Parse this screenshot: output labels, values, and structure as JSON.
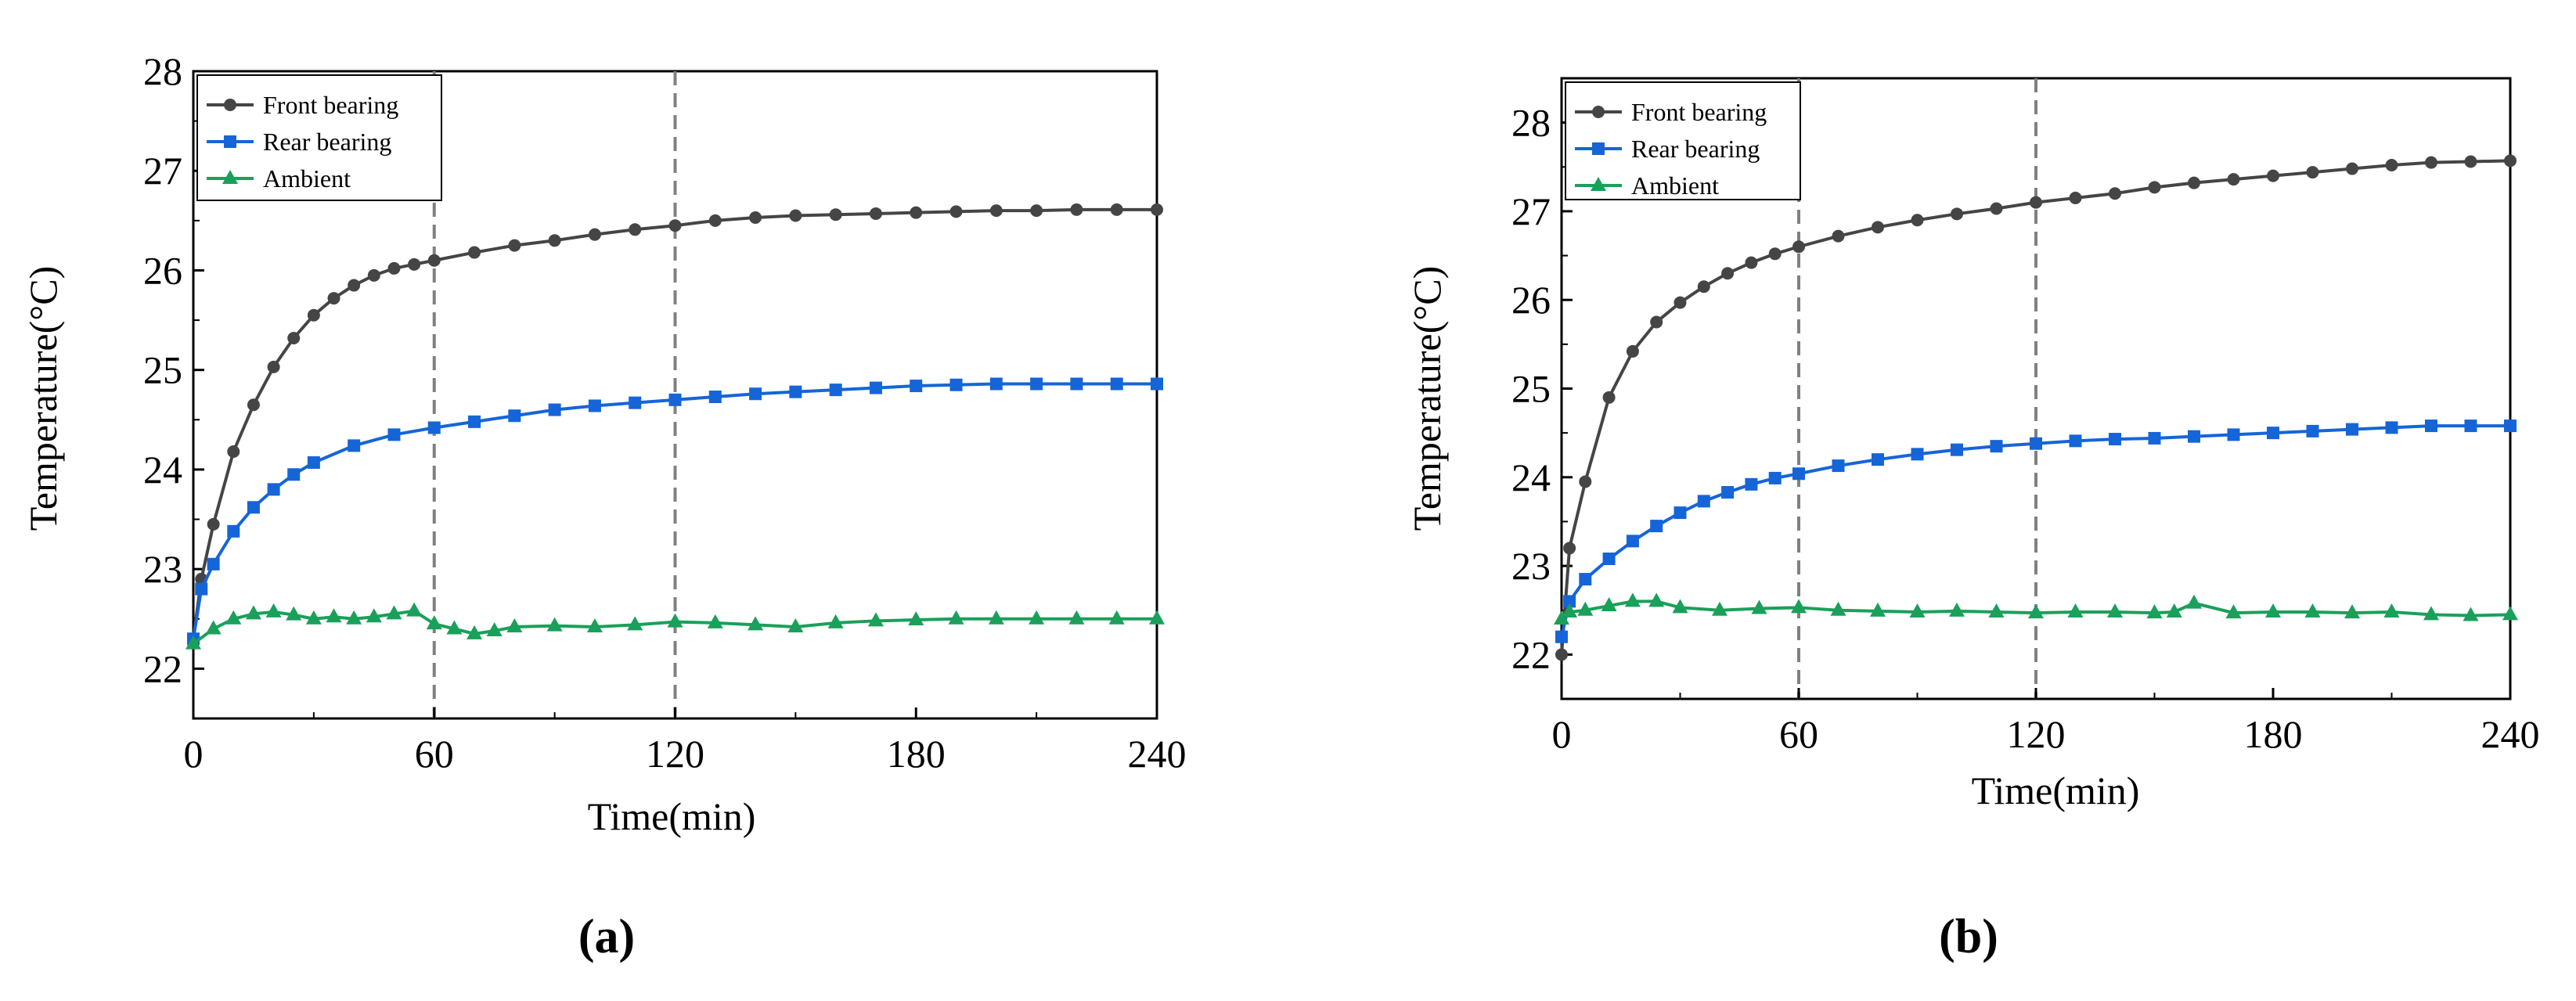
{
  "chart_data": [
    {
      "type": "line",
      "panel_label": "(a)",
      "xlabel": "Time(min)",
      "ylabel": "Temperature(°C)",
      "xlim": [
        0,
        240
      ],
      "ylim": [
        21.5,
        28
      ],
      "xticks": [
        0,
        60,
        120,
        180,
        240
      ],
      "yticks": [
        22,
        23,
        24,
        25,
        26,
        27,
        28
      ],
      "vlines": [
        60,
        120
      ],
      "legend": "top-left",
      "series": [
        {
          "name": "Front bearing",
          "color": "#454545",
          "marker": "circle",
          "x": [
            0,
            2,
            5,
            10,
            15,
            20,
            25,
            30,
            35,
            40,
            45,
            50,
            55,
            60,
            70,
            80,
            90,
            100,
            110,
            120,
            130,
            140,
            150,
            160,
            170,
            180,
            190,
            200,
            210,
            220,
            230,
            240
          ],
          "y": [
            22.3,
            22.9,
            23.45,
            24.18,
            24.65,
            25.03,
            25.32,
            25.55,
            25.72,
            25.85,
            25.95,
            26.02,
            26.06,
            26.1,
            26.18,
            26.25,
            26.3,
            26.36,
            26.41,
            26.45,
            26.5,
            26.53,
            26.55,
            26.56,
            26.57,
            26.58,
            26.59,
            26.6,
            26.6,
            26.61,
            26.61,
            26.61
          ]
        },
        {
          "name": "Rear bearing",
          "color": "#1565d8",
          "marker": "square",
          "x": [
            0,
            2,
            5,
            10,
            15,
            20,
            25,
            30,
            40,
            50,
            60,
            70,
            80,
            90,
            100,
            110,
            120,
            130,
            140,
            150,
            160,
            170,
            180,
            190,
            200,
            210,
            220,
            230,
            240
          ],
          "y": [
            22.3,
            22.8,
            23.05,
            23.38,
            23.62,
            23.8,
            23.95,
            24.07,
            24.24,
            24.35,
            24.42,
            24.48,
            24.54,
            24.6,
            24.64,
            24.67,
            24.7,
            24.73,
            24.76,
            24.78,
            24.8,
            24.82,
            24.84,
            24.85,
            24.86,
            24.86,
            24.86,
            24.86,
            24.86
          ]
        },
        {
          "name": "Ambient",
          "color": "#1aa05a",
          "marker": "triangle",
          "x": [
            0,
            5,
            10,
            15,
            20,
            25,
            30,
            35,
            40,
            45,
            50,
            55,
            60,
            65,
            70,
            75,
            80,
            90,
            100,
            110,
            120,
            130,
            140,
            150,
            160,
            170,
            180,
            190,
            200,
            210,
            220,
            230,
            240
          ],
          "y": [
            22.25,
            22.4,
            22.5,
            22.55,
            22.57,
            22.54,
            22.5,
            22.52,
            22.5,
            22.52,
            22.55,
            22.58,
            22.45,
            22.4,
            22.35,
            22.38,
            22.42,
            22.43,
            22.42,
            22.44,
            22.47,
            22.46,
            22.44,
            22.42,
            22.46,
            22.48,
            22.49,
            22.5,
            22.5,
            22.5,
            22.5,
            22.5,
            22.5
          ]
        }
      ]
    },
    {
      "type": "line",
      "panel_label": "(b)",
      "xlabel": "Time(min)",
      "ylabel": "Temperature(°C)",
      "xlim": [
        0,
        240
      ],
      "ylim": [
        21.5,
        28.5
      ],
      "xticks": [
        0,
        60,
        120,
        180,
        240
      ],
      "yticks": [
        22,
        23,
        24,
        25,
        26,
        27,
        28
      ],
      "vlines": [
        60,
        120
      ],
      "legend": "top-left",
      "series": [
        {
          "name": "Front bearing",
          "color": "#454545",
          "marker": "circle",
          "x": [
            0,
            2,
            6,
            12,
            18,
            24,
            30,
            36,
            42,
            48,
            54,
            60,
            70,
            80,
            90,
            100,
            110,
            120,
            130,
            140,
            150,
            160,
            170,
            180,
            190,
            200,
            210,
            220,
            230,
            240
          ],
          "y": [
            22.0,
            23.2,
            23.95,
            24.9,
            25.42,
            25.75,
            25.97,
            26.15,
            26.3,
            26.42,
            26.52,
            26.6,
            26.72,
            26.82,
            26.9,
            26.97,
            27.03,
            27.1,
            27.15,
            27.2,
            27.27,
            27.32,
            27.36,
            27.4,
            27.44,
            27.48,
            27.52,
            27.55,
            27.56,
            27.57
          ]
        },
        {
          "name": "Rear bearing",
          "color": "#1565d8",
          "marker": "square",
          "x": [
            0,
            2,
            6,
            12,
            18,
            24,
            30,
            36,
            42,
            48,
            54,
            60,
            70,
            80,
            90,
            100,
            110,
            120,
            130,
            140,
            150,
            160,
            170,
            180,
            190,
            200,
            210,
            220,
            230,
            240
          ],
          "y": [
            22.2,
            22.6,
            22.85,
            23.08,
            23.28,
            23.45,
            23.6,
            23.73,
            23.83,
            23.92,
            23.99,
            24.04,
            24.13,
            24.2,
            24.26,
            24.31,
            24.35,
            24.38,
            24.41,
            24.43,
            24.44,
            24.46,
            24.48,
            24.5,
            24.52,
            24.54,
            24.56,
            24.58,
            24.58,
            24.58
          ]
        },
        {
          "name": "Ambient",
          "color": "#1aa05a",
          "marker": "triangle",
          "x": [
            0,
            2,
            6,
            12,
            18,
            24,
            30,
            40,
            50,
            60,
            70,
            80,
            90,
            100,
            110,
            120,
            130,
            140,
            150,
            155,
            160,
            170,
            180,
            190,
            200,
            210,
            220,
            230,
            240
          ],
          "y": [
            22.4,
            22.48,
            22.5,
            22.55,
            22.6,
            22.6,
            22.53,
            22.5,
            22.52,
            22.53,
            22.5,
            22.49,
            22.48,
            22.49,
            22.48,
            22.47,
            22.48,
            22.48,
            22.47,
            22.48,
            22.58,
            22.47,
            22.48,
            22.48,
            22.47,
            22.48,
            22.45,
            22.44,
            22.45
          ]
        }
      ]
    }
  ]
}
